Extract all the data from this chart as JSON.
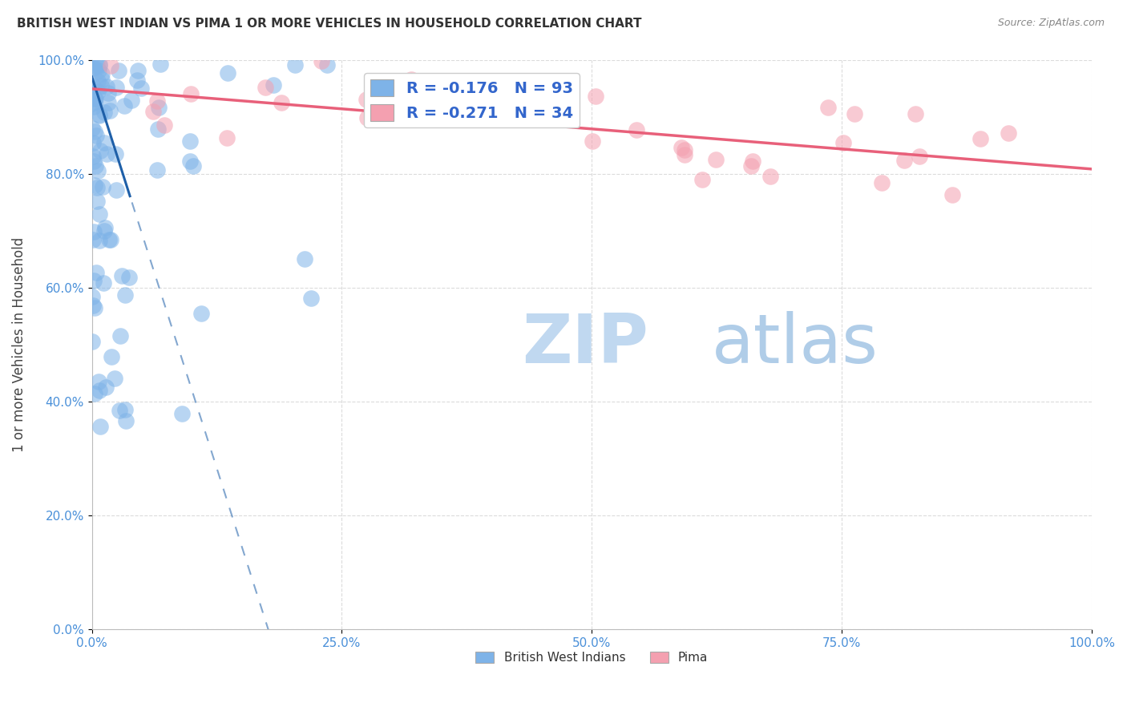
{
  "title": "BRITISH WEST INDIAN VS PIMA 1 OR MORE VEHICLES IN HOUSEHOLD CORRELATION CHART",
  "source": "Source: ZipAtlas.com",
  "ylabel": "1 or more Vehicles in Household",
  "legend_blue_label": "R = -0.176   N = 93",
  "legend_pink_label": "R = -0.271   N = 34",
  "blue_color": "#7EB3E8",
  "pink_color": "#F4A0B0",
  "blue_line_color": "#1E5FA8",
  "pink_line_color": "#E8607A",
  "watermark_zip_color": "#C0D8F0",
  "watermark_atlas_color": "#B0CDE8",
  "background_color": "#FFFFFF",
  "grid_color": "#CCCCCC",
  "tick_color": "#4A90D9",
  "xlim": [
    0,
    100
  ],
  "ylim": [
    0,
    100
  ],
  "x_ticks": [
    0,
    25,
    50,
    75,
    100
  ],
  "y_ticks": [
    0,
    20,
    40,
    60,
    80,
    100
  ]
}
